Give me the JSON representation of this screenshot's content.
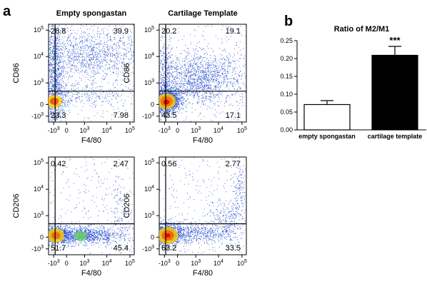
{
  "panel_a_letter": "a",
  "panel_b_letter": "b",
  "chart_data": [
    {
      "type": "scatter",
      "panel": "a",
      "title": "Empty spongastan",
      "xlabel": "F4/80",
      "ylabel": "CD86",
      "x_ticks": [
        "-10^3",
        "0",
        "10^3",
        "10^4",
        "10^5"
      ],
      "y_ticks": [
        "-10^3",
        "0",
        "10^3",
        "10^4",
        "10^5"
      ],
      "quadrants": {
        "top_left": "28.8",
        "top_right": "39.9",
        "bottom_left": "23.3",
        "bottom_right": "7.98"
      }
    },
    {
      "type": "scatter",
      "panel": "a",
      "title": "Cartilage Template",
      "xlabel": "F4/80",
      "ylabel": "CD86",
      "x_ticks": [
        "-10^3",
        "0",
        "10^3",
        "10^4",
        "10^5"
      ],
      "y_ticks": [
        "-10^3",
        "0",
        "10^3",
        "10^4",
        "10^5"
      ],
      "quadrants": {
        "top_left": "20.2",
        "top_right": "19.1",
        "bottom_left": "43.5",
        "bottom_right": "17.1"
      }
    },
    {
      "type": "scatter",
      "panel": "a",
      "title": "",
      "xlabel": "F4/80",
      "ylabel": "CD206",
      "x_ticks": [
        "-10^3",
        "0",
        "10^3",
        "10^4",
        "10^5"
      ],
      "y_ticks": [
        "-10^3",
        "0",
        "10^3",
        "10^4",
        "10^5"
      ],
      "quadrants": {
        "top_left": "0.42",
        "top_right": "2.47",
        "bottom_left": "51.7",
        "bottom_right": "45.4"
      }
    },
    {
      "type": "scatter",
      "panel": "a",
      "title": "",
      "xlabel": "F4/80",
      "ylabel": "CD206",
      "x_ticks": [
        "-10^3",
        "0",
        "10^3",
        "10^4",
        "10^5"
      ],
      "y_ticks": [
        "-10^3",
        "0",
        "10^3",
        "10^4",
        "10^5"
      ],
      "quadrants": {
        "top_left": "0.56",
        "top_right": "2.77",
        "bottom_left": "63.2",
        "bottom_right": "33.5"
      }
    },
    {
      "type": "bar",
      "panel": "b",
      "title": "Ratio of M2/M1",
      "categories": [
        "empty spongastan",
        "cartilage template"
      ],
      "values": [
        0.071,
        0.209
      ],
      "errors": [
        0.011,
        0.025
      ],
      "bar_colors": [
        "#ffffff",
        "#000000"
      ],
      "significance": [
        "",
        "***"
      ],
      "ylim": [
        0,
        0.25
      ],
      "y_ticks": [
        0.0,
        0.05,
        0.1,
        0.15,
        0.2,
        0.25
      ],
      "y_tick_labels": [
        "0.00",
        "0.05",
        "0.10",
        "0.15",
        "0.20",
        "0.25"
      ],
      "xlabel": "",
      "ylabel": ""
    }
  ]
}
